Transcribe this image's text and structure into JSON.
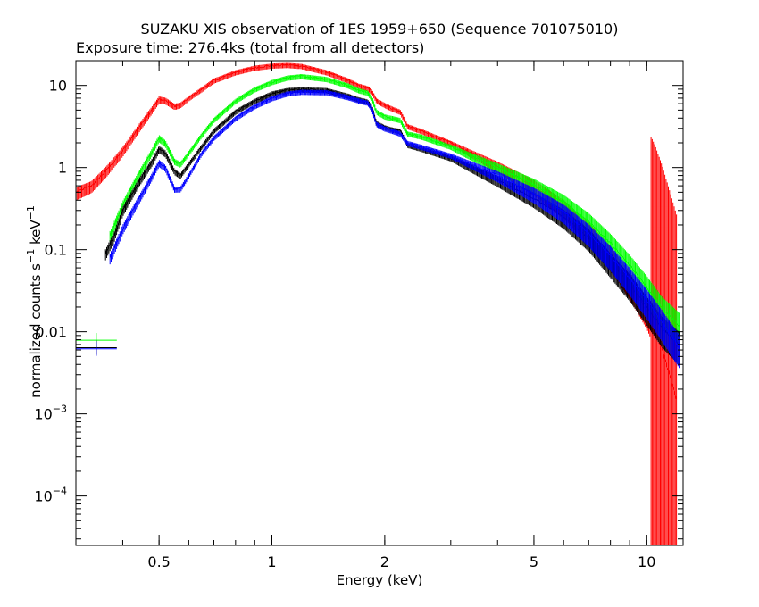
{
  "chart_data": {
    "type": "line",
    "title": "SUZAKU XIS observation of 1ES 1959+650 (Sequence 701075010)",
    "subtitle": "Exposure time: 276.4ks (total from all detectors)",
    "xlabel": "Energy (keV)",
    "ylabel_base": "normalized counts s",
    "ylabel_exp1": "−1",
    "ylabel_mid": " keV",
    "ylabel_exp2": "−1",
    "x_scale": "log",
    "y_scale": "log",
    "xlim": [
      0.3,
      12.5
    ],
    "ylim": [
      2.5e-05,
      20
    ],
    "x_ticks": [
      {
        "value": 0.5,
        "label": "0.5"
      },
      {
        "value": 1,
        "label": "1"
      },
      {
        "value": 2,
        "label": "2"
      },
      {
        "value": 5,
        "label": "5"
      },
      {
        "value": 10,
        "label": "10"
      }
    ],
    "y_ticks": [
      {
        "value": 10,
        "label": "10",
        "exp": ""
      },
      {
        "value": 1,
        "label": "1",
        "exp": ""
      },
      {
        "value": 0.1,
        "label": "0.1",
        "exp": ""
      },
      {
        "value": 0.01,
        "label": "0.01",
        "exp": ""
      },
      {
        "value": 0.001,
        "label": "10",
        "exp": "−3"
      },
      {
        "value": 0.0001,
        "label": "10",
        "exp": "−4"
      }
    ],
    "grid": false,
    "series": [
      {
        "color": "#ff0000",
        "x": [
          0.3,
          0.33,
          0.36,
          0.4,
          0.44,
          0.48,
          0.5,
          0.52,
          0.55,
          0.57,
          0.6,
          0.65,
          0.7,
          0.8,
          0.9,
          1.0,
          1.1,
          1.2,
          1.4,
          1.6,
          1.7,
          1.8,
          1.85,
          1.9,
          2.0,
          2.1,
          2.2,
          2.3,
          2.5,
          3,
          4,
          5,
          6,
          7,
          8,
          9,
          10,
          10.5,
          11,
          11.5,
          12
        ],
        "y": [
          0.5,
          0.6,
          0.9,
          1.6,
          3.0,
          5.2,
          6.8,
          6.6,
          5.6,
          5.8,
          7.0,
          9.0,
          11.5,
          14.5,
          16.5,
          17.5,
          17.8,
          17.3,
          14.5,
          11.5,
          10.0,
          9.3,
          8.4,
          6.6,
          5.8,
          5.2,
          4.8,
          3.2,
          2.8,
          2.0,
          1.05,
          0.6,
          0.33,
          0.17,
          0.085,
          0.04,
          0.018,
          0.011,
          0.006,
          0.003,
          0.0015
        ],
        "err_from": 10.2
      },
      {
        "color": "#00ff00",
        "x": [
          0.37,
          0.4,
          0.44,
          0.48,
          0.5,
          0.52,
          0.55,
          0.57,
          0.6,
          0.65,
          0.7,
          0.8,
          0.9,
          1.0,
          1.1,
          1.2,
          1.4,
          1.6,
          1.7,
          1.8,
          1.85,
          1.9,
          2.0,
          2.1,
          2.2,
          2.3,
          2.5,
          3,
          4,
          5,
          6,
          7,
          8,
          9,
          10,
          11,
          12.2
        ],
        "y": [
          0.15,
          0.35,
          0.8,
          1.6,
          2.3,
          2.0,
          1.2,
          1.1,
          1.5,
          2.5,
          3.8,
          6.5,
          9.0,
          11.0,
          12.5,
          13.0,
          12.0,
          10.0,
          8.8,
          8.2,
          7.0,
          4.8,
          4.2,
          4.0,
          3.8,
          2.6,
          2.4,
          1.8,
          1.0,
          0.62,
          0.38,
          0.22,
          0.12,
          0.065,
          0.035,
          0.019,
          0.012
        ],
        "err_from": 99
      },
      {
        "color": "#000000",
        "x": [
          0.36,
          0.38,
          0.4,
          0.44,
          0.48,
          0.5,
          0.52,
          0.55,
          0.57,
          0.6,
          0.65,
          0.7,
          0.8,
          0.9,
          1.0,
          1.1,
          1.2,
          1.4,
          1.6,
          1.7,
          1.8,
          1.85,
          1.9,
          2.0,
          2.1,
          2.2,
          2.3,
          2.5,
          3,
          4,
          5,
          6,
          7,
          8,
          9,
          10,
          11,
          12.2
        ],
        "y": [
          0.09,
          0.15,
          0.3,
          0.65,
          1.2,
          1.7,
          1.5,
          0.9,
          0.8,
          1.1,
          1.8,
          2.8,
          4.8,
          6.5,
          8.0,
          8.8,
          9.0,
          8.8,
          7.5,
          6.8,
          6.4,
          5.4,
          3.5,
          3.1,
          2.9,
          2.8,
          1.9,
          1.7,
          1.3,
          0.7,
          0.42,
          0.25,
          0.14,
          0.07,
          0.038,
          0.02,
          0.011,
          0.007
        ],
        "err_from": 99
      },
      {
        "color": "#0000ff",
        "x": [
          0.37,
          0.4,
          0.44,
          0.48,
          0.5,
          0.52,
          0.55,
          0.57,
          0.6,
          0.65,
          0.7,
          0.8,
          0.9,
          1.0,
          1.1,
          1.2,
          1.4,
          1.6,
          1.7,
          1.8,
          1.85,
          1.9,
          2.0,
          2.1,
          2.2,
          2.3,
          2.5,
          3,
          4,
          5,
          6,
          7,
          8,
          9,
          10,
          11,
          12.2
        ],
        "y": [
          0.08,
          0.18,
          0.4,
          0.8,
          1.15,
          1.0,
          0.55,
          0.55,
          0.8,
          1.5,
          2.3,
          4.0,
          5.6,
          7.0,
          8.0,
          8.4,
          8.3,
          7.2,
          6.6,
          6.2,
          5.2,
          3.4,
          3.0,
          2.8,
          2.6,
          2.0,
          1.8,
          1.4,
          0.8,
          0.48,
          0.29,
          0.16,
          0.085,
          0.045,
          0.024,
          0.013,
          0.0065
        ],
        "err_from": 99
      }
    ],
    "background_markers": [
      {
        "color": "#00ff00",
        "x": 0.34,
        "y": 0.0079
      },
      {
        "color": "#000000",
        "x": 0.34,
        "y": 0.0064
      },
      {
        "color": "#0000ff",
        "x": 0.34,
        "y": 0.0062
      }
    ]
  }
}
